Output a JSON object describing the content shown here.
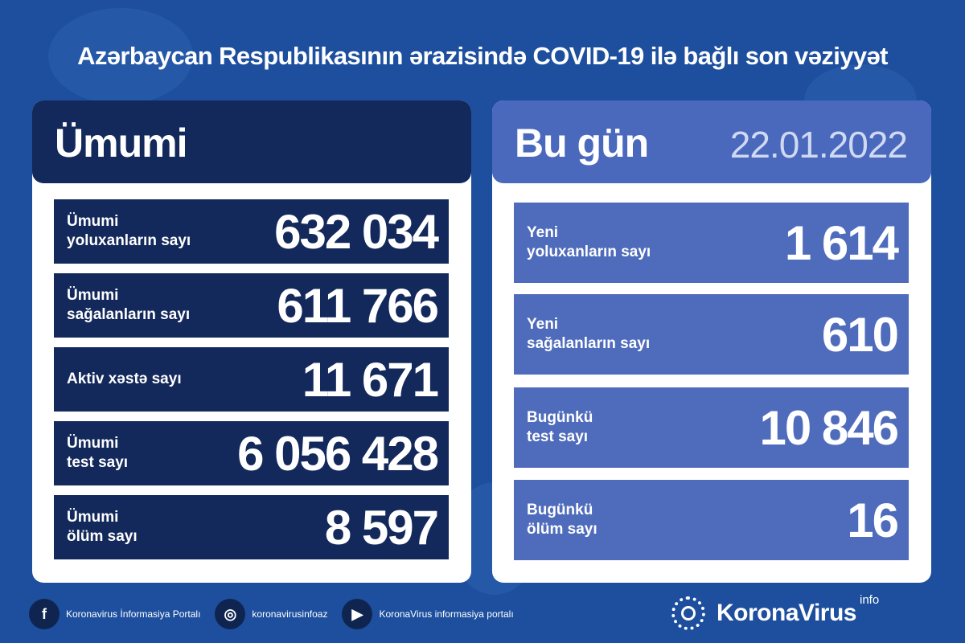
{
  "title": "Azərbaycan Respublikasının ərazisində COVID-19 ilə bağlı son vəziyyət",
  "colors": {
    "background": "#1d4f9e",
    "total_panel": "#13295b",
    "today_panel": "#4f6cbc",
    "card": "#ffffff"
  },
  "total": {
    "heading": "Ümumi",
    "rows": [
      {
        "label1": "Ümumi",
        "label2": "yoluxanların sayı",
        "value": "632 034"
      },
      {
        "label1": "Ümumi",
        "label2": "sağalanların sayı",
        "value": "611 766"
      },
      {
        "label1": "Aktiv xəstə sayı",
        "label2": "",
        "value": "11 671"
      },
      {
        "label1": "Ümumi",
        "label2": "test sayı",
        "value": "6 056 428"
      },
      {
        "label1": "Ümumi",
        "label2": "ölüm sayı",
        "value": "8 597"
      }
    ]
  },
  "today": {
    "heading": "Bu gün",
    "date": "22.01.2022",
    "rows": [
      {
        "label1": "Yeni",
        "label2": "yoluxanların sayı",
        "value": "1 614"
      },
      {
        "label1": "Yeni",
        "label2": "sağalanların sayı",
        "value": "610"
      },
      {
        "label1": "Bugünkü",
        "label2": "test sayı",
        "value": "10 846"
      },
      {
        "label1": "Bugünkü",
        "label2": "ölüm sayı",
        "value": "16"
      }
    ]
  },
  "footer": {
    "social": [
      {
        "icon": "facebook-icon",
        "glyph": "f",
        "text": "Koronavirus İnformasiya Portalı"
      },
      {
        "icon": "instagram-icon",
        "glyph": "◎",
        "text": "koronavirusinfoaz"
      },
      {
        "icon": "youtube-icon",
        "glyph": "▶",
        "text": "KoronaVirus informasiya portalı"
      }
    ],
    "brand": "KoronaVirus",
    "brand_sup": "info"
  }
}
